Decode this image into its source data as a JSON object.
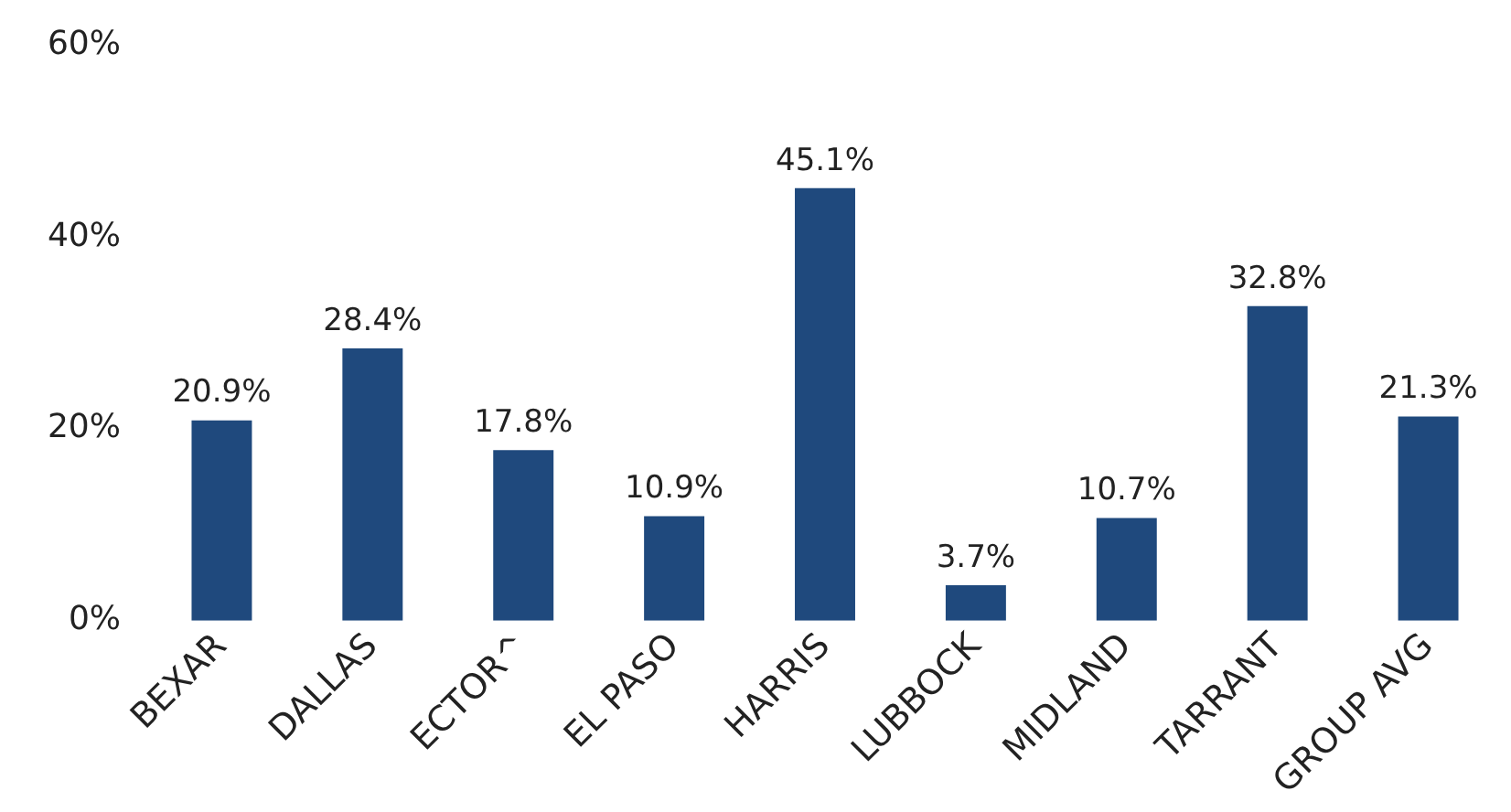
{
  "chart_data": {
    "type": "bar",
    "categories": [
      "BEXAR",
      "DALLAS",
      "ECTOR^",
      "EL PASO",
      "HARRIS",
      "LUBBOCK",
      "MIDLAND",
      "TARRANT",
      "GROUP AVG"
    ],
    "values": [
      20.9,
      28.4,
      17.8,
      10.9,
      45.1,
      3.7,
      10.7,
      32.8,
      21.3
    ],
    "value_labels": [
      "20.9%",
      "28.4%",
      "17.8%",
      "10.9%",
      "45.1%",
      "3.7%",
      "10.7%",
      "32.8%",
      "21.3%"
    ],
    "color": "#1f497d",
    "ylim": [
      0,
      60
    ],
    "yticks": [
      {
        "value": 0,
        "label": "0%"
      },
      {
        "value": 20,
        "label": "20%"
      },
      {
        "value": 40,
        "label": "40%"
      },
      {
        "value": 60,
        "label": "60%"
      }
    ],
    "grid": false,
    "legend": false
  }
}
